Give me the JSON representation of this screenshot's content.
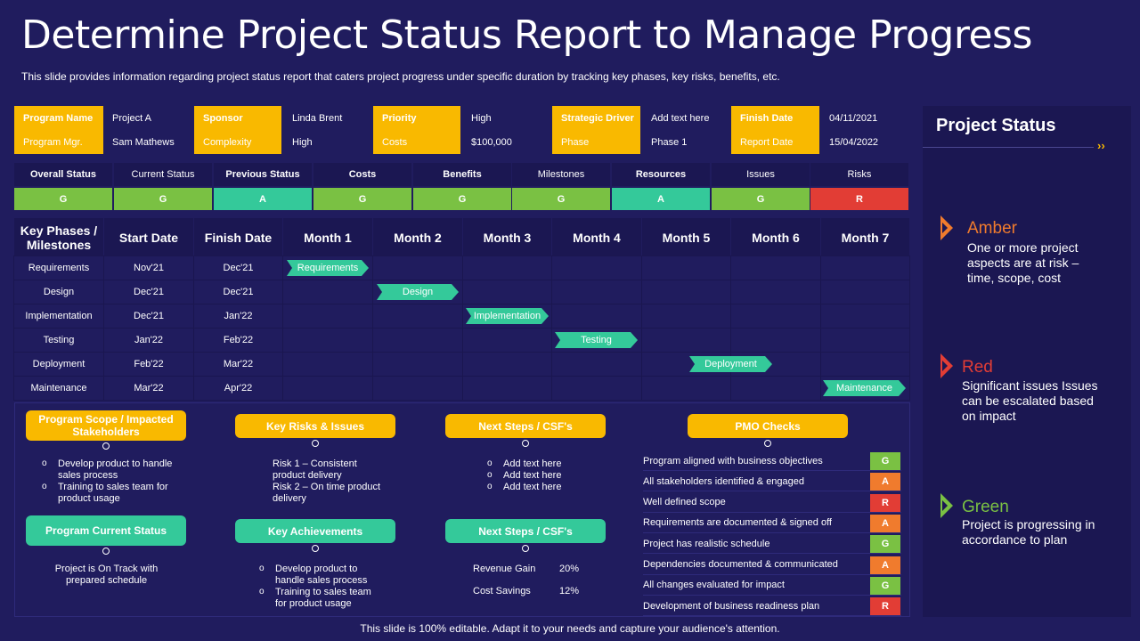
{
  "title": "Determine Project Status Report to Manage Progress",
  "subtitle": "This slide provides information regarding project status report that caters project progress under specific duration by tracking key phases, key risks, benefits, etc.",
  "info": {
    "program_name_label": "Program Name",
    "program_name": "Project A",
    "sponsor_label": "Sponsor",
    "sponsor": "Linda Brent",
    "priority_label": "Priority",
    "priority": "High",
    "strategic_driver_label": "Strategic Driver",
    "strategic_driver": "Add text here",
    "finish_date_label": "Finish Date",
    "finish_date": "04/11/2021",
    "program_mgr_label": "Program Mgr.",
    "program_mgr": "Sam Mathews",
    "complexity_label": "Complexity",
    "complexity": "High",
    "costs_label": "Costs",
    "costs": "$100,000",
    "phase_label": "Phase",
    "phase": "Phase 1",
    "report_date_label": "Report Date",
    "report_date": "15/04/2022"
  },
  "status": {
    "headers": [
      "Overall Status",
      "Current Status",
      "Previous Status",
      "Costs",
      "Benefits",
      "Milestones",
      "Resources",
      "Issues",
      "Risks"
    ],
    "values": [
      "G",
      "G",
      "A",
      "G",
      "G",
      "G",
      "A",
      "G",
      "R"
    ]
  },
  "colors": {
    "G": "#7ac143",
    "A": "#34c99a",
    "R": "#e23d35",
    "amber": "#f07b2d",
    "yellow": "#f9b900"
  },
  "gantt": {
    "headers": [
      "Key Phases / Milestones",
      "Start Date",
      "Finish Date",
      "Month 1",
      "Month 2",
      "Month 3",
      "Month 4",
      "Month 5",
      "Month 6",
      "Month 7"
    ],
    "rows": [
      {
        "phase": "Requirements",
        "start": "Nov'21",
        "finish": "Dec'21",
        "bar": "Requirements"
      },
      {
        "phase": "Design",
        "start": "Dec'21",
        "finish": "Dec'21",
        "bar": "Design"
      },
      {
        "phase": "Implementation",
        "start": "Dec'21",
        "finish": "Jan'22",
        "bar": "Implementation"
      },
      {
        "phase": "Testing",
        "start": "Jan'22",
        "finish": "Feb'22",
        "bar": "Testing"
      },
      {
        "phase": "Deployment",
        "start": "Feb'22",
        "finish": "Mar'22",
        "bar": "Deployment"
      },
      {
        "phase": "Maintenance",
        "start": "Mar'22",
        "finish": "Apr'22",
        "bar": "Maintenance"
      }
    ]
  },
  "panels": {
    "scope_title": "Program Scope / Impacted Stakeholders",
    "scope_items": [
      "Develop product to handle sales process",
      "Training to sales team for product usage"
    ],
    "risks_title": "Key Risks & Issues",
    "risks_text": [
      "Risk 1 – Consistent product delivery",
      "Risk 2 – On time product delivery"
    ],
    "next_title": "Next Steps / CSF's",
    "next_items": [
      "Add text here",
      "Add text here",
      "Add text here"
    ],
    "pmo_title": "PMO Checks",
    "current_title": "Program Current Status",
    "current_text": "Project is On Track with prepared schedule",
    "achievements_title": "Key Achievements",
    "achievements_items": [
      "Develop product to handle sales process",
      "Training to sales team for product usage"
    ],
    "next2_title": "Next Steps / CSF's",
    "revenue_label": "Revenue Gain",
    "revenue_value": "20%",
    "savings_label": "Cost Savings",
    "savings_value": "12%"
  },
  "pmo": [
    {
      "label": "Program aligned with business objectives",
      "status": "G"
    },
    {
      "label": "All stakeholders identified & engaged",
      "status": "A"
    },
    {
      "label": "Well defined scope",
      "status": "R"
    },
    {
      "label": "Requirements are documented & signed off",
      "status": "A"
    },
    {
      "label": "Project has realistic schedule",
      "status": "G"
    },
    {
      "label": "Dependencies documented & communicated",
      "status": "A"
    },
    {
      "label": "All changes evaluated for impact",
      "status": "G"
    },
    {
      "label": "Development of business readiness plan",
      "status": "R"
    }
  ],
  "legend": {
    "title": "Project Status",
    "amber_title": "Amber",
    "amber_text": "One or more project aspects are at risk – time, scope, cost",
    "red_title": "Red",
    "red_text": "Significant issues Issues can be escalated based on impact",
    "green_title": "Green",
    "green_text": "Project is progressing in accordance to plan"
  },
  "footer": "This slide is 100% editable. Adapt it to your needs and capture your audience's attention."
}
